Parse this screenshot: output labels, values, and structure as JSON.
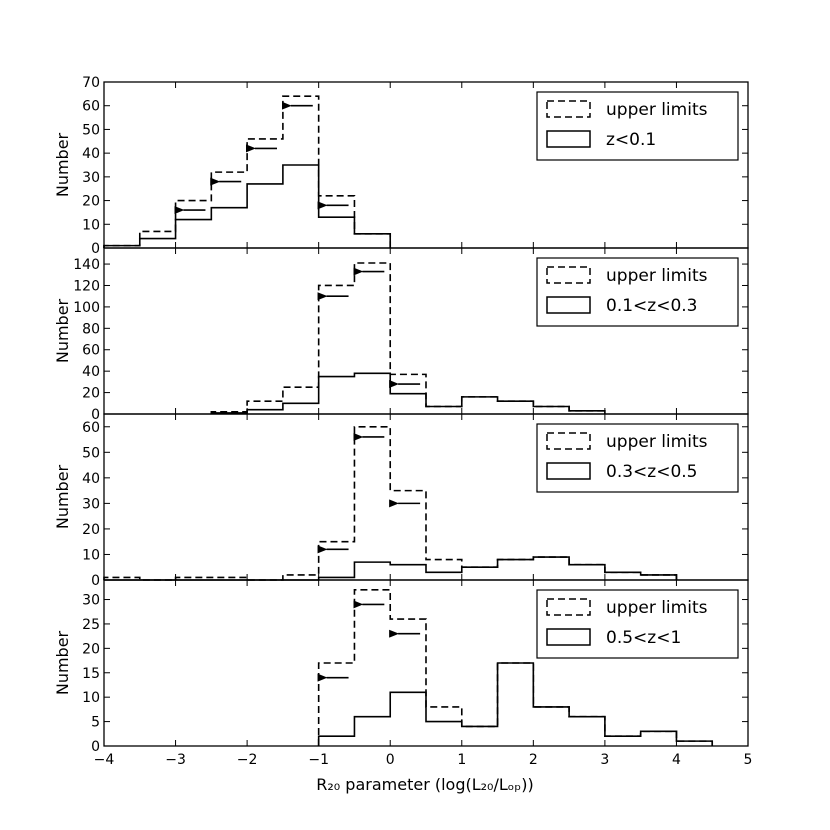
{
  "figure": {
    "xlabel": "R₂₀ parameter (log(L₂₀/Lₒₚ))"
  },
  "chart_data": [
    {
      "type": "histogram",
      "ylabel": "Number",
      "xlim": [
        -4,
        5
      ],
      "ylim": [
        0,
        70
      ],
      "yticks": [
        0,
        10,
        20,
        30,
        40,
        50,
        60,
        70
      ],
      "xticks": [
        -4,
        -3,
        -2,
        -1,
        0,
        1,
        2,
        3,
        4,
        5
      ],
      "legend_position": "top-right",
      "bin_edges": [
        -4,
        -3.5,
        -3,
        -2.5,
        -2,
        -1.5,
        -1,
        -0.5,
        0
      ],
      "series": [
        {
          "name": "upper limits",
          "style": "dashed",
          "values": [
            1,
            7,
            20,
            32,
            46,
            64,
            22,
            6
          ]
        },
        {
          "name": "z<0.1",
          "style": "solid",
          "values": [
            1,
            4,
            12,
            17,
            27,
            35,
            13,
            6
          ]
        }
      ],
      "arrows_at_y": [
        [
          -2.75,
          16
        ],
        [
          -2.25,
          28
        ],
        [
          -1.75,
          42
        ],
        [
          -1.25,
          60
        ],
        [
          -0.75,
          18
        ]
      ]
    },
    {
      "type": "histogram",
      "ylabel": "Number",
      "xlim": [
        -4,
        5
      ],
      "ylim": [
        0,
        155
      ],
      "yticks": [
        0,
        20,
        40,
        60,
        80,
        100,
        120,
        140
      ],
      "xticks": [
        -4,
        -3,
        -2,
        -1,
        0,
        1,
        2,
        3,
        4,
        5
      ],
      "legend_position": "top-right",
      "bin_edges": [
        -2.5,
        -2,
        -1.5,
        -1,
        -0.5,
        0,
        0.5,
        1,
        1.5,
        2,
        2.5,
        3
      ],
      "series": [
        {
          "name": "upper limits",
          "style": "dashed",
          "values": [
            2,
            12,
            25,
            120,
            141,
            37,
            7,
            16,
            12,
            7,
            3
          ]
        },
        {
          "name": "0.1<z<0.3",
          "style": "solid",
          "values": [
            1,
            4,
            10,
            35,
            38,
            19,
            7,
            16,
            12,
            7,
            3
          ]
        }
      ],
      "arrows_at_y": [
        [
          -0.75,
          110
        ],
        [
          -0.25,
          133
        ],
        [
          0.25,
          28
        ]
      ]
    },
    {
      "type": "histogram",
      "ylabel": "Number",
      "xlim": [
        -4,
        5
      ],
      "ylim": [
        0,
        65
      ],
      "yticks": [
        0,
        10,
        20,
        30,
        40,
        50,
        60
      ],
      "xticks": [
        -4,
        -3,
        -2,
        -1,
        0,
        1,
        2,
        3,
        4,
        5
      ],
      "legend_position": "top-right",
      "bin_edges": [
        -4,
        -3.5,
        -3,
        -2.5,
        -2,
        -1.5,
        -1,
        -0.5,
        0,
        0.5,
        1,
        1.5,
        2,
        2.5,
        3,
        3.5,
        4
      ],
      "series": [
        {
          "name": "upper limits",
          "style": "dashed",
          "values": [
            1,
            0,
            1,
            1,
            0,
            2,
            15,
            60,
            35,
            8,
            5,
            8,
            9,
            6,
            3,
            2
          ]
        },
        {
          "name": "0.3<z<0.5",
          "style": "solid",
          "values": [
            0,
            0,
            0,
            0,
            0,
            0,
            1,
            7,
            6,
            3,
            5,
            8,
            9,
            6,
            3,
            2
          ]
        }
      ],
      "arrows_at_y": [
        [
          -0.75,
          12
        ],
        [
          -0.25,
          56
        ],
        [
          0.25,
          30
        ]
      ]
    },
    {
      "type": "histogram",
      "ylabel": "Number",
      "xlim": [
        -4,
        5
      ],
      "ylim": [
        0,
        34
      ],
      "yticks": [
        0,
        5,
        10,
        15,
        20,
        25,
        30
      ],
      "xticks": [
        -4,
        -3,
        -2,
        -1,
        0,
        1,
        2,
        3,
        4,
        5
      ],
      "xticklabels": [
        "−4",
        "−3",
        "−2",
        "−1",
        "0",
        "1",
        "2",
        "3",
        "4",
        "5"
      ],
      "legend_position": "top-right",
      "bin_edges": [
        -1,
        -0.5,
        0,
        0.5,
        1,
        1.5,
        2,
        2.5,
        3,
        3.5,
        4,
        4.5
      ],
      "series": [
        {
          "name": "upper limits",
          "style": "dashed",
          "values": [
            17,
            32,
            26,
            8,
            4,
            17,
            8,
            6,
            2,
            3,
            1
          ]
        },
        {
          "name": "0.5<z<1",
          "style": "solid",
          "values": [
            2,
            6,
            11,
            5,
            4,
            17,
            8,
            6,
            2,
            3,
            1
          ]
        }
      ],
      "arrows_at_y": [
        [
          -0.75,
          14
        ],
        [
          -0.25,
          29
        ],
        [
          0.25,
          23
        ]
      ]
    }
  ]
}
